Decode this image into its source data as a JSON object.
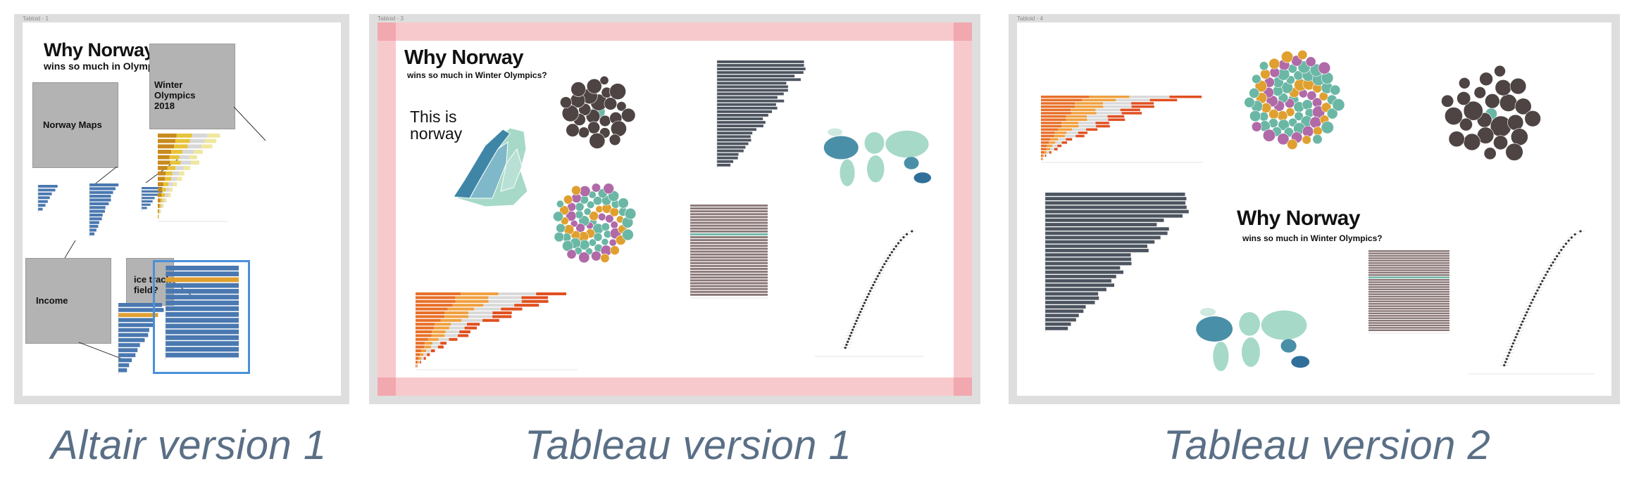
{
  "boards": [
    {
      "label": "Tabloid - 1",
      "caption": "Altair version 1"
    },
    {
      "label": "Tabloid - 3",
      "caption": "Tableau version 1"
    },
    {
      "label": "Tabloid - 4",
      "caption": "Tableau version 2"
    }
  ],
  "altair": {
    "title": "Why Norway",
    "subtitle": "wins so much in Olympics?",
    "norway_maps": "Norway Maps",
    "winter_olympics": "Winter Olympics 2018",
    "income": "Income",
    "ice_track": "ice track field?"
  },
  "tableau1": {
    "title": "Why Norway",
    "subtitle": "wins so much in Winter Olympics?",
    "this_is": "This is norway"
  },
  "tableau2": {
    "title": "Why Norway",
    "subtitle": "wins so much in Winter Olympics?"
  },
  "colors": {
    "bar_blue": "#4a78b0",
    "gold": "#e0a030",
    "orange": "#e8702a",
    "slate": "#4d5560",
    "teal": "#6bb7a5",
    "purple": "#b06aa8",
    "bubble_dark": "#4e4444",
    "map_teal": "#a6d9c8",
    "stripe": "#8a7676",
    "pink": "#f8c9cc"
  },
  "icons": [
    "bubble-cluster",
    "world-map",
    "norway-map",
    "bar-chart"
  ]
}
